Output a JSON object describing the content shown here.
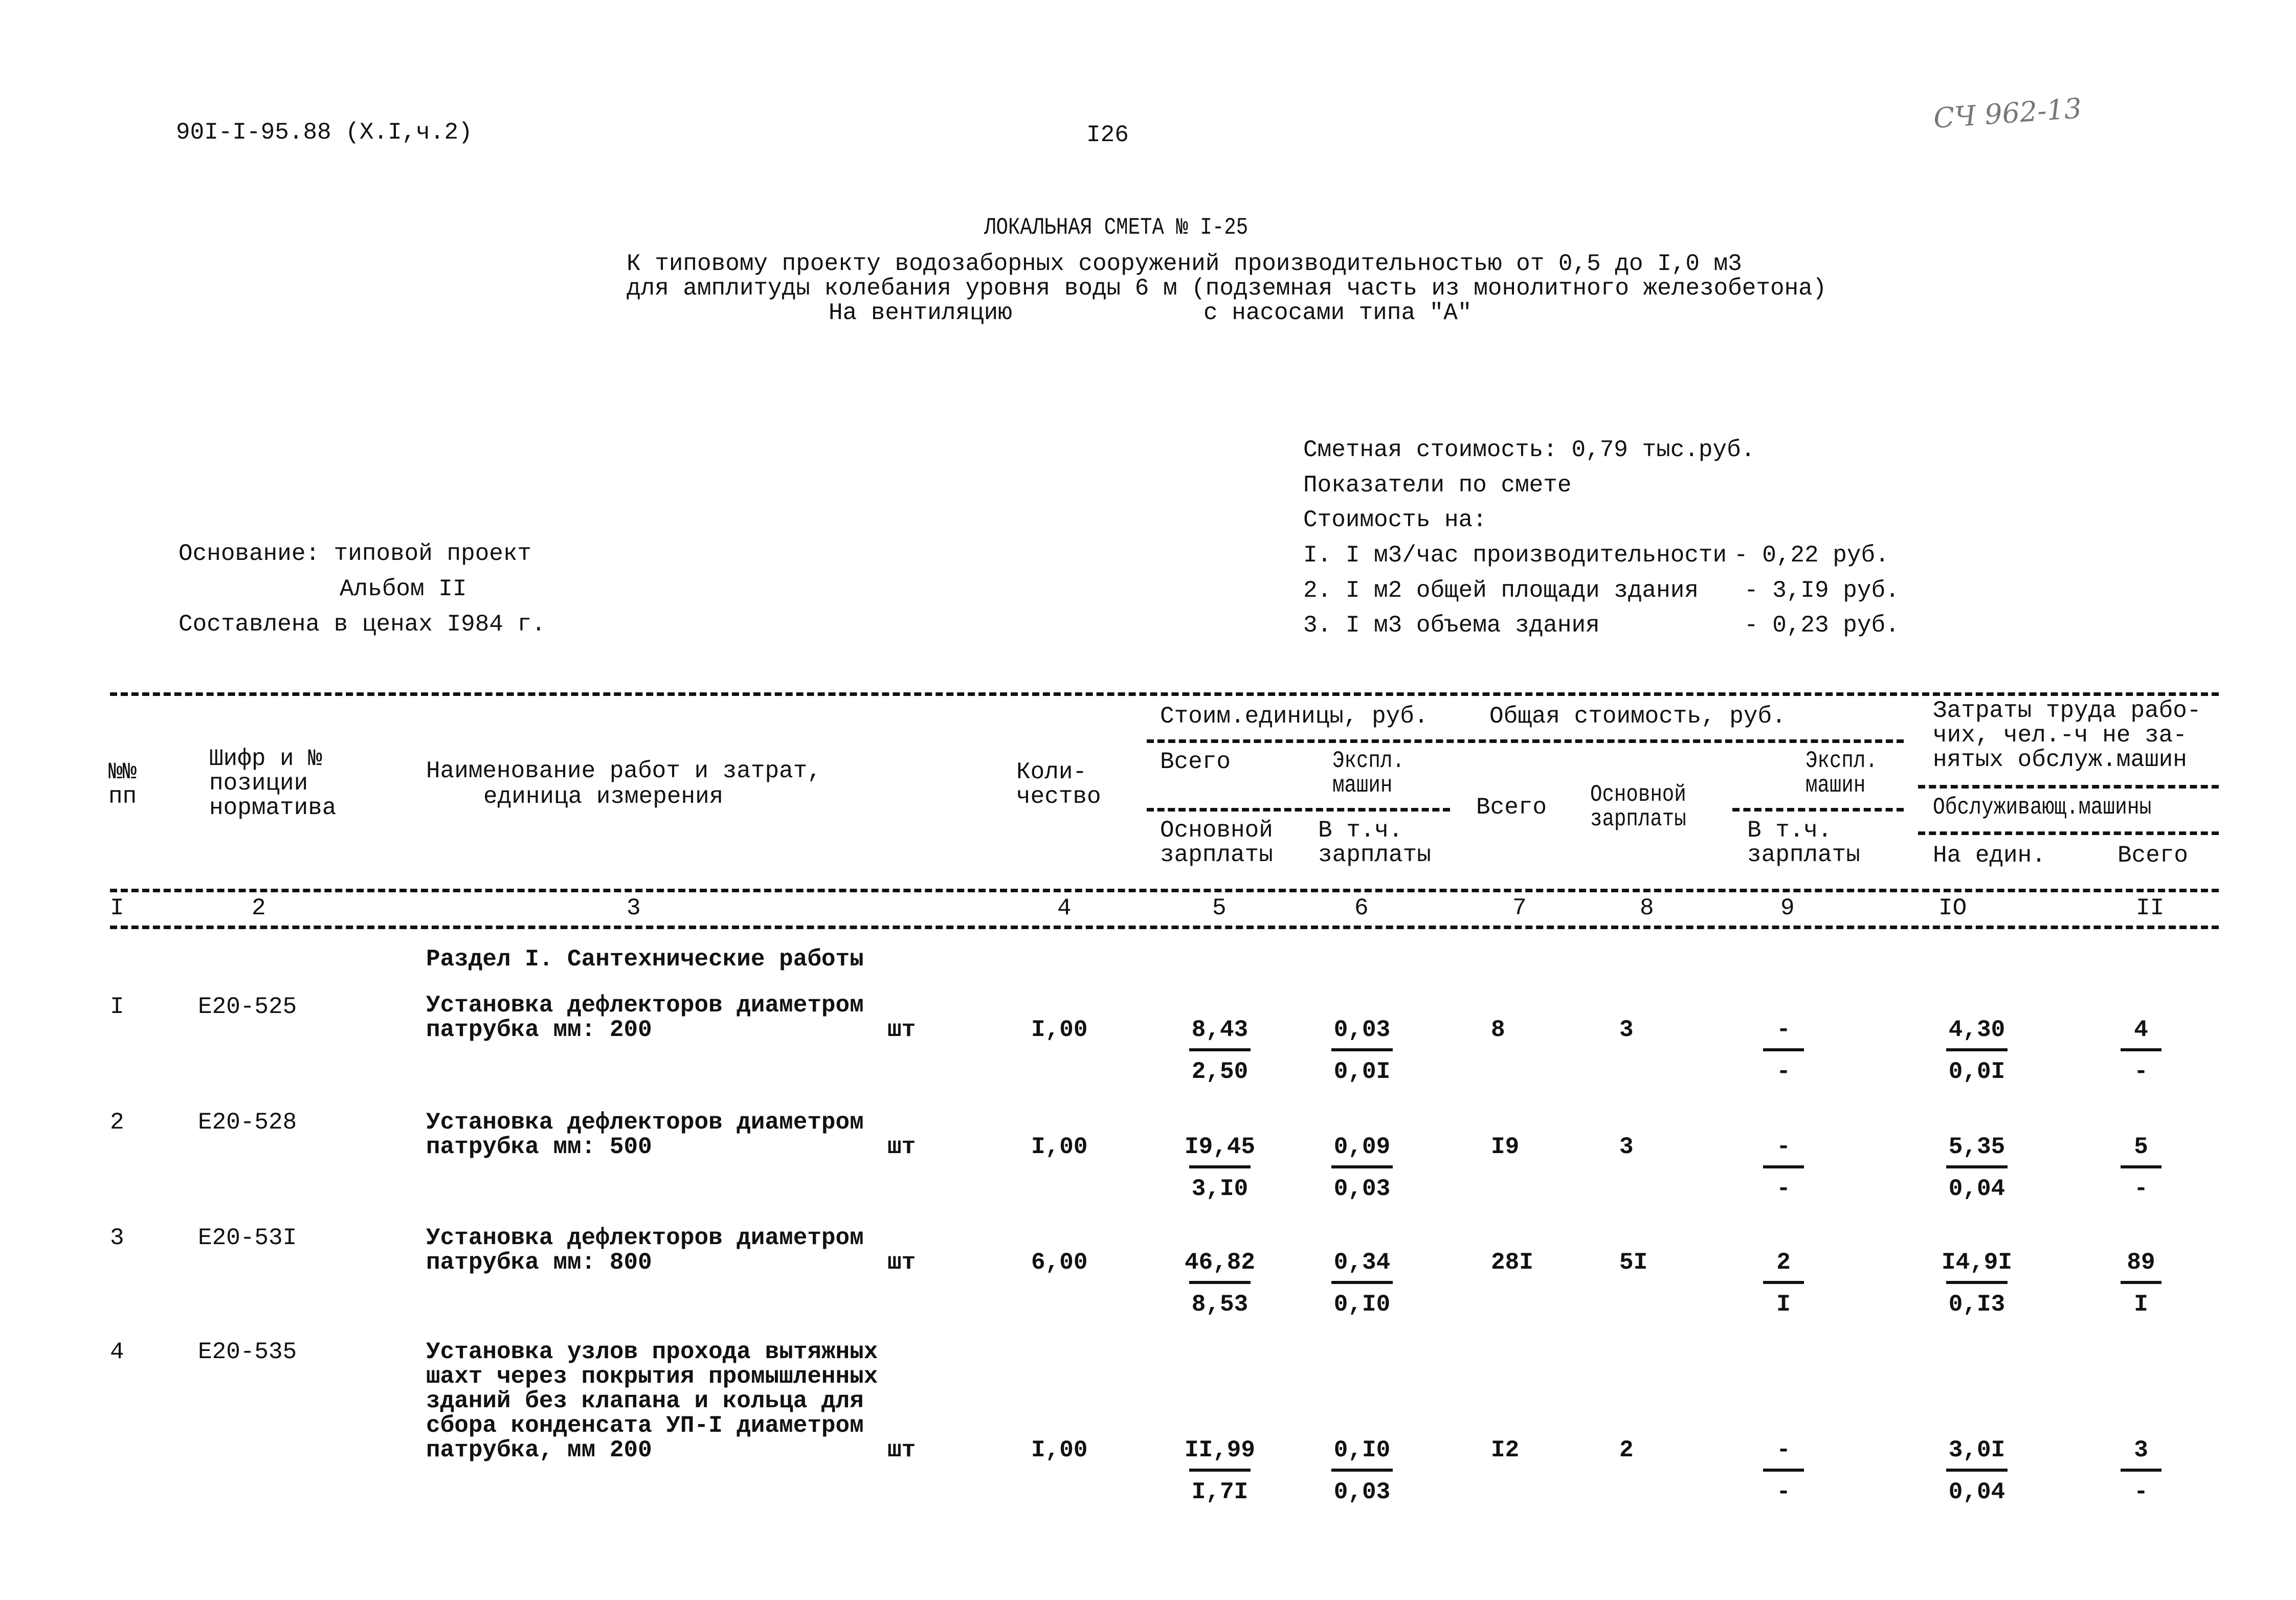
{
  "header": {
    "doc_code": "90I-I-95.88 (X.I,ч.2)",
    "page_number": "I26",
    "handwritten_stamp": "СЧ 962-13"
  },
  "title": {
    "heading": "ЛОКАЛЬНАЯ СМЕТА № I-25",
    "line1": "К типовому проекту водозаборных сооружений производительностью от 0,5 до I,0 м3",
    "line2": "для амплитуды колебания уровня воды 6 м (подземная часть из монолитного железобетона)",
    "line3a": "На вентиляцию",
    "line3b": "с насосами типа \"А\""
  },
  "basis": {
    "line1": "Основание: типовой проект",
    "line2": "Альбом II",
    "line3": "Составлена в ценах I984 г."
  },
  "summary": {
    "cost": "Сметная стоимость: 0,79 тыс.руб.",
    "indicators": "Показатели по смете",
    "cost_of": "Стоимость на:",
    "items": [
      {
        "label": "I. I м3/час производительности",
        "value": "- 0,22 руб."
      },
      {
        "label": "2. I м2 общей площади здания",
        "value": "- 3,I9 руб."
      },
      {
        "label": "3. I м3 объема здания",
        "value": "- 0,23 руб."
      }
    ]
  },
  "table": {
    "headers": {
      "c1": [
        "№№",
        "пп"
      ],
      "c2": [
        "Шифр и №",
        "позиции",
        "норматива"
      ],
      "c3": [
        "Наименование работ и затрат,",
        "единица измерения"
      ],
      "c4": [
        "Коли-",
        "чество"
      ],
      "unit_cost": "Стоим.единицы, руб.",
      "total_cost": "Общая стоимость, руб.",
      "labor": [
        "Затраты труда рабо-",
        "чих, чел.-ч не за-",
        "нятых обслуж.машин"
      ],
      "c5_top": "Всего",
      "c5_bottom": [
        "Основной",
        "зарплаты"
      ],
      "c6_top": [
        "Экспл.",
        "машин"
      ],
      "c6_bottom": [
        "В т.ч.",
        "зарплаты"
      ],
      "c7": "Всего",
      "c8": [
        "Основной",
        "зарплаты"
      ],
      "c9_top": [
        "Экспл.",
        "машин"
      ],
      "c9_bottom": [
        "В т.ч.",
        "зарплаты"
      ],
      "service": "Обслуживающ.машины",
      "c10": "На един.",
      "c11": "Всего"
    },
    "column_numbers": [
      "I",
      "2",
      "3",
      "4",
      "5",
      "6",
      "7",
      "8",
      "9",
      "IO",
      "II"
    ],
    "section": "Раздел I. Сантехнические работы",
    "rows": [
      {
        "n": "I",
        "code": "Е20-525",
        "name": [
          "Установка дефлекторов диаметром",
          "патрубка мм: 200"
        ],
        "unit": "шт",
        "qty": "I,00",
        "c5": [
          "8,43",
          "2,50"
        ],
        "c6": [
          "0,03",
          "0,0I"
        ],
        "c7": "8",
        "c8": "3",
        "c9": [
          "-",
          "-"
        ],
        "c10": [
          "4,30",
          "0,0I"
        ],
        "c11": [
          "4",
          "-"
        ]
      },
      {
        "n": "2",
        "code": "Е20-528",
        "name": [
          "Установка дефлекторов диаметром",
          "патрубка мм: 500"
        ],
        "unit": "шт",
        "qty": "I,00",
        "c5": [
          "I9,45",
          "3,I0"
        ],
        "c6": [
          "0,09",
          "0,03"
        ],
        "c7": "I9",
        "c8": "3",
        "c9": [
          "-",
          "-"
        ],
        "c10": [
          "5,35",
          "0,04"
        ],
        "c11": [
          "5",
          "-"
        ]
      },
      {
        "n": "3",
        "code": "Е20-53I",
        "name": [
          "Установка дефлекторов диаметром",
          "патрубка мм: 800"
        ],
        "unit": "шт",
        "qty": "6,00",
        "c5": [
          "46,82",
          "8,53"
        ],
        "c6": [
          "0,34",
          "0,I0"
        ],
        "c7": "28I",
        "c8": "5I",
        "c9": [
          "2",
          "I"
        ],
        "c10": [
          "I4,9I",
          "0,I3"
        ],
        "c11": [
          "89",
          "I"
        ]
      },
      {
        "n": "4",
        "code": "Е20-535",
        "name": [
          "Установка узлов прохода вытяжных",
          "шахт через покрытия промышленных",
          "зданий без клапана и кольца для",
          "сбора конденсата УП-I диаметром",
          "патрубка, мм 200"
        ],
        "unit": "шт",
        "qty": "I,00",
        "c5": [
          "II,99",
          "I,7I"
        ],
        "c6": [
          "0,I0",
          "0,03"
        ],
        "c7": "I2",
        "c8": "2",
        "c9": [
          "-",
          "-"
        ],
        "c10": [
          "3,0I",
          "0,04"
        ],
        "c11": [
          "3",
          "-"
        ]
      }
    ]
  }
}
